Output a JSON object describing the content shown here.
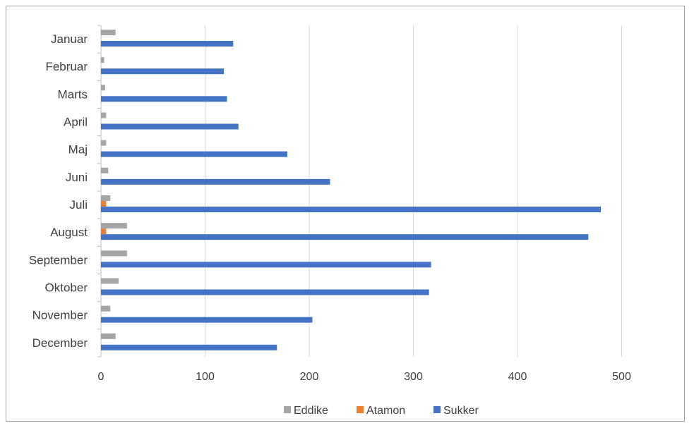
{
  "chart_data": {
    "type": "bar",
    "orientation": "horizontal",
    "categories": [
      "Januar",
      "Februar",
      "Marts",
      "April",
      "Maj",
      "Juni",
      "Juli",
      "August",
      "September",
      "Oktober",
      "November",
      "December"
    ],
    "series": [
      {
        "name": "Eddike",
        "color": "#a5a5a5",
        "values": [
          14,
          3,
          4,
          5,
          5,
          7,
          9,
          25,
          25,
          17,
          9,
          14
        ]
      },
      {
        "name": "Atamon",
        "color": "#ed7d31",
        "values": [
          0,
          0,
          0,
          0,
          0,
          0,
          5,
          5,
          0,
          0,
          0,
          0
        ]
      },
      {
        "name": "Sukker",
        "color": "#4472c4",
        "values": [
          127,
          118,
          121,
          132,
          179,
          220,
          480,
          468,
          317,
          315,
          203,
          169
        ]
      }
    ],
    "x_ticks": [
      "0",
      "100",
      "200",
      "300",
      "400",
      "500"
    ],
    "xlim": [
      0,
      560
    ],
    "grid": true,
    "legend_position": "bottom",
    "title": "",
    "xlabel": "",
    "ylabel": ""
  }
}
